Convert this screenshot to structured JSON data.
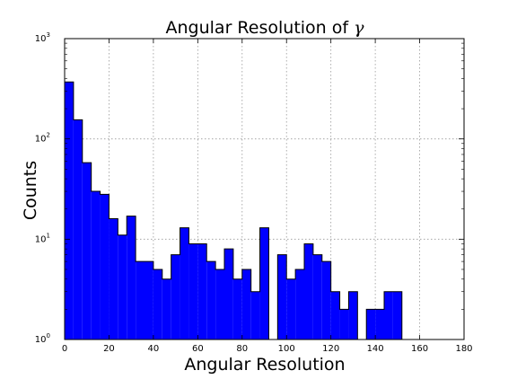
{
  "chart_data": {
    "type": "bar",
    "histogram": true,
    "title": "Angular Resolution of ",
    "title_symbol": "γ",
    "xlabel": "Angular Resolution",
    "ylabel": "Counts",
    "xlim": [
      0,
      180
    ],
    "ylim": [
      1,
      1000
    ],
    "yscale": "log",
    "grid": true,
    "bar_color": "#0000ff",
    "edge_color": "#000000",
    "bin_edges": [
      0,
      4,
      8,
      12,
      16,
      20,
      24,
      28,
      32,
      36,
      40,
      44,
      48,
      52,
      56,
      60,
      64,
      68,
      72,
      76,
      80,
      84,
      88,
      92,
      96,
      100,
      104,
      108,
      112,
      116,
      120,
      124,
      128,
      132,
      136,
      140,
      144,
      148,
      152,
      156,
      160,
      164,
      168
    ],
    "values": [
      370,
      155,
      58,
      30,
      28,
      16,
      11,
      17,
      6,
      6,
      5,
      4,
      7,
      13,
      9,
      9,
      6,
      5,
      8,
      4,
      5,
      3,
      13,
      0,
      7,
      4,
      5,
      9,
      7,
      6,
      3,
      2,
      3,
      0,
      2,
      2,
      3,
      3,
      0,
      0,
      1,
      0
    ],
    "x_ticks": [
      "0",
      "20",
      "40",
      "60",
      "80",
      "100",
      "120",
      "140",
      "160",
      "180"
    ],
    "y_ticks": [
      {
        "base": "10",
        "exp": "0"
      },
      {
        "base": "10",
        "exp": "1"
      },
      {
        "base": "10",
        "exp": "2"
      },
      {
        "base": "10",
        "exp": "3"
      }
    ]
  }
}
